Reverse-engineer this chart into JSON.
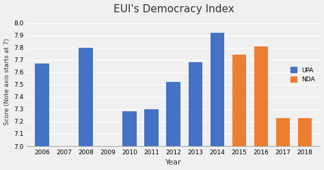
{
  "title": "EUI's Democracy Index",
  "xlabel": "Year",
  "ylabel": "Score (Note axis starts at 7)",
  "ylim": [
    7.0,
    8.05
  ],
  "yticks": [
    7.0,
    7.1,
    7.2,
    7.3,
    7.4,
    7.5,
    7.6,
    7.7,
    7.8,
    7.9,
    8.0
  ],
  "years": [
    2006,
    2007,
    2008,
    2009,
    2010,
    2011,
    2012,
    2013,
    2014,
    2015,
    2016,
    2017,
    2018
  ],
  "values": [
    7.67,
    0,
    7.8,
    0,
    7.28,
    7.3,
    7.52,
    7.68,
    7.92,
    7.74,
    7.81,
    7.23,
    7.23
  ],
  "colors": [
    "#4472C4",
    "#4472C4",
    "#4472C4",
    "#4472C4",
    "#4472C4",
    "#4472C4",
    "#4472C4",
    "#4472C4",
    "#4472C4",
    "#ED7D31",
    "#ED7D31",
    "#ED7D31",
    "#ED7D31"
  ],
  "upa_color": "#4472C4",
  "nda_color": "#ED7D31",
  "bar_width": 0.65,
  "background_color": "#f0f0f0",
  "plot_bg_color": "#f0f0f0",
  "grid_color": "#ffffff",
  "legend_labels": [
    "UPA",
    "NDA"
  ],
  "title_fontsize": 11,
  "tick_fontsize": 6.5,
  "label_fontsize": 8
}
